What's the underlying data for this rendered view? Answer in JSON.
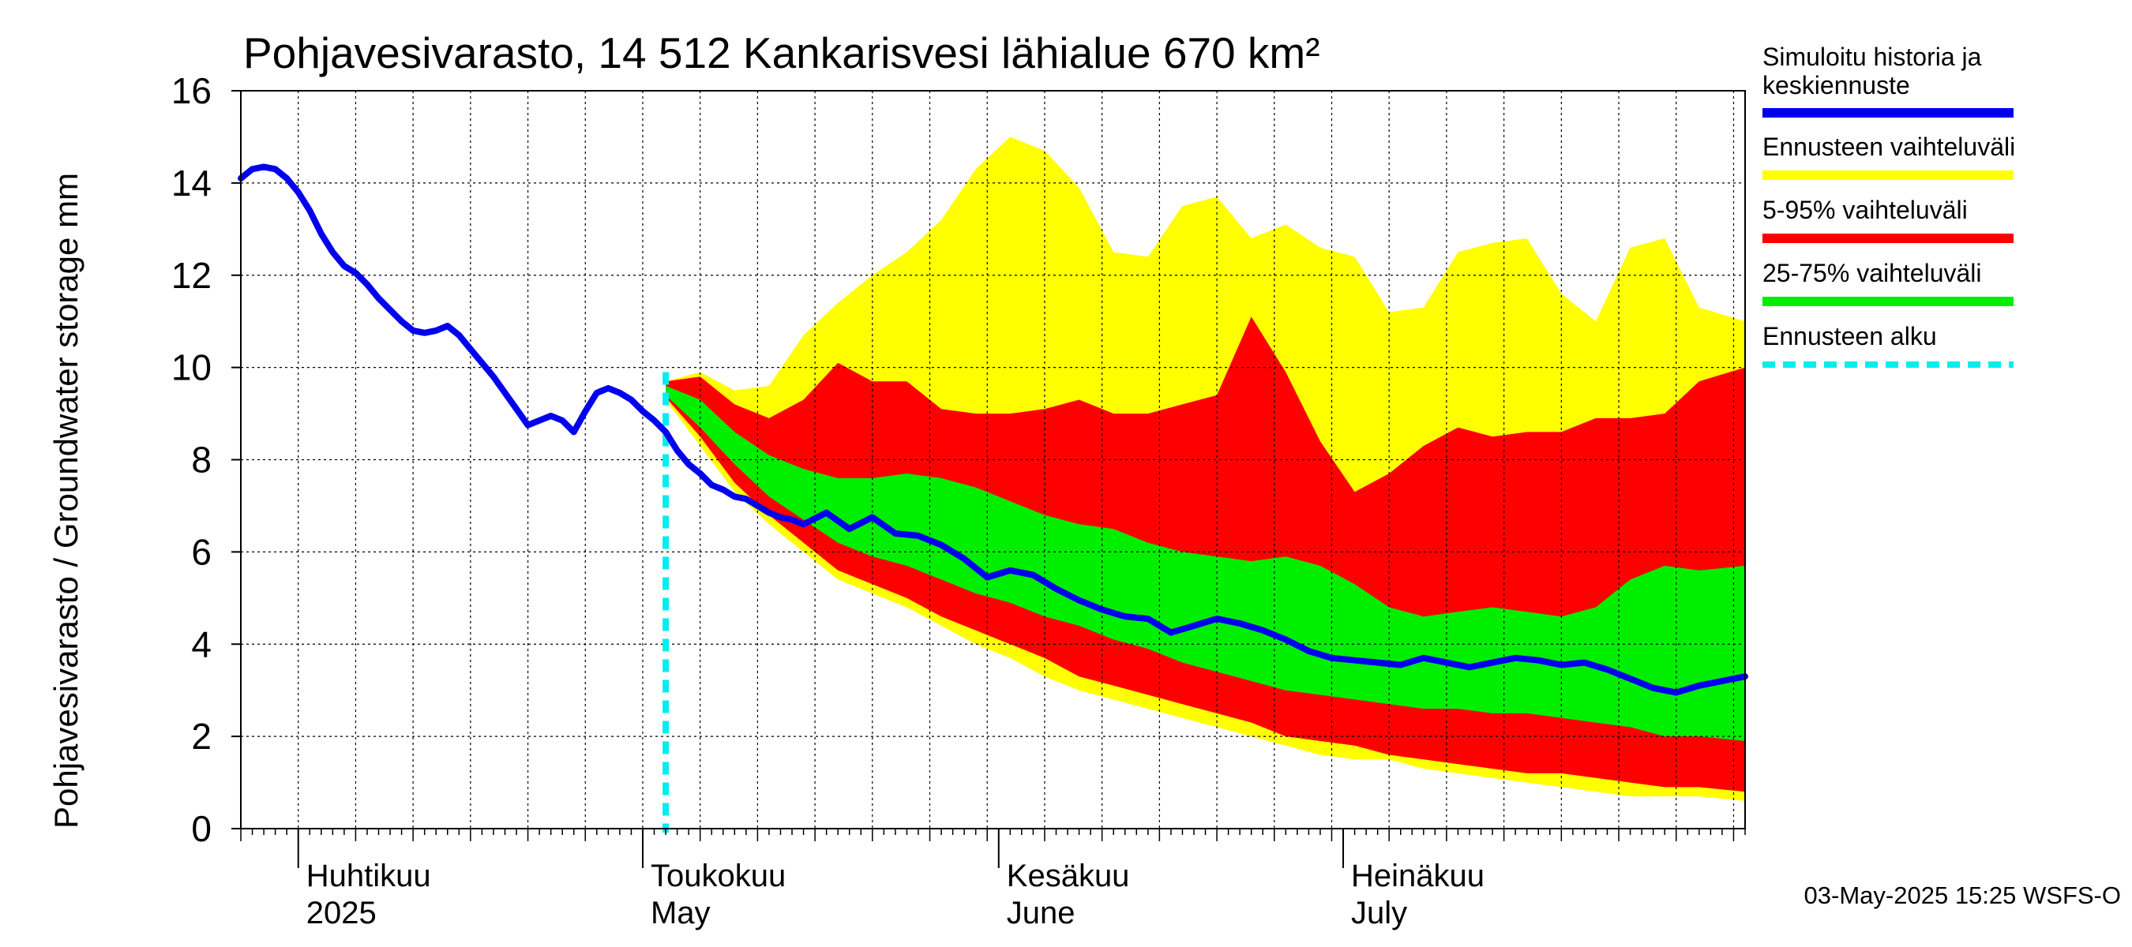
{
  "chart_data": {
    "type": "area",
    "title": "Pohjavesivarasto, 14 512 Kankarisvesi lähialue 670 km²",
    "ylabel": "Pohjavesivarasto / Groundwater storage   mm",
    "ylim": [
      0,
      16
    ],
    "yticks": [
      "0",
      "2",
      "4",
      "6",
      "8",
      "10",
      "12",
      "14",
      "16"
    ],
    "xlim": [
      "2025-03-27",
      "2025-08-05"
    ],
    "x_grid_step_days": 5,
    "grid": true,
    "months": [
      {
        "date": "2025-04-01",
        "label1": "Huhtikuu",
        "label2": "2025"
      },
      {
        "date": "2025-05-01",
        "label1": "Toukokuu",
        "label2": "May"
      },
      {
        "date": "2025-06-01",
        "label1": "Kesäkuu",
        "label2": "June"
      },
      {
        "date": "2025-07-01",
        "label1": "Heinäkuu",
        "label2": "July"
      }
    ],
    "forecast_start": "2025-05-03",
    "legend_position": "right",
    "legend": [
      {
        "key": "history",
        "label": "Simuloitu historia ja keskiennuste",
        "color": "#0000ee"
      },
      {
        "key": "full",
        "label": "Ennusteen vaihteluväli",
        "color": "#ffff00"
      },
      {
        "key": "p5_95",
        "label": "5-95% vaihteluväli",
        "color": "#ff0000"
      },
      {
        "key": "p25_75",
        "label": "25-75% vaihteluväli",
        "color": "#00ee00"
      },
      {
        "key": "start",
        "label": "Ennusteen alku",
        "color": "#00eeee"
      }
    ],
    "series": [
      {
        "name": "Simuloitu historia ja keskiennuste",
        "x": [
          "2025-03-27",
          "2025-03-28",
          "2025-03-29",
          "2025-03-30",
          "2025-03-31",
          "2025-04-01",
          "2025-04-02",
          "2025-04-03",
          "2025-04-04",
          "2025-04-05",
          "2025-04-06",
          "2025-04-07",
          "2025-04-08",
          "2025-04-09",
          "2025-04-10",
          "2025-04-11",
          "2025-04-12",
          "2025-04-13",
          "2025-04-14",
          "2025-04-15",
          "2025-04-16",
          "2025-04-17",
          "2025-04-18",
          "2025-04-19",
          "2025-04-20",
          "2025-04-21",
          "2025-04-22",
          "2025-04-23",
          "2025-04-24",
          "2025-04-25",
          "2025-04-26",
          "2025-04-27",
          "2025-04-28",
          "2025-04-29",
          "2025-04-30",
          "2025-05-01",
          "2025-05-02",
          "2025-05-03",
          "2025-05-04",
          "2025-05-05",
          "2025-05-06",
          "2025-05-07",
          "2025-05-08",
          "2025-05-09",
          "2025-05-10",
          "2025-05-11",
          "2025-05-12",
          "2025-05-13",
          "2025-05-14",
          "2025-05-15",
          "2025-05-17",
          "2025-05-19",
          "2025-05-21",
          "2025-05-23",
          "2025-05-25",
          "2025-05-27",
          "2025-05-29",
          "2025-05-31",
          "2025-06-02",
          "2025-06-04",
          "2025-06-06",
          "2025-06-08",
          "2025-06-10",
          "2025-06-12",
          "2025-06-14",
          "2025-06-16",
          "2025-06-18",
          "2025-06-20",
          "2025-06-22",
          "2025-06-24",
          "2025-06-26",
          "2025-06-28",
          "2025-06-30",
          "2025-07-02",
          "2025-07-04",
          "2025-07-06",
          "2025-07-08",
          "2025-07-10",
          "2025-07-12",
          "2025-07-14",
          "2025-07-16",
          "2025-07-18",
          "2025-07-20",
          "2025-07-22",
          "2025-07-24",
          "2025-07-26",
          "2025-07-28",
          "2025-07-30",
          "2025-08-01",
          "2025-08-03",
          "2025-08-05"
        ],
        "values": [
          14.1,
          14.3,
          14.35,
          14.3,
          14.1,
          13.8,
          13.4,
          12.9,
          12.5,
          12.2,
          12.05,
          11.8,
          11.5,
          11.25,
          11.0,
          10.8,
          10.75,
          10.8,
          10.9,
          10.7,
          10.4,
          10.1,
          9.8,
          9.45,
          9.1,
          8.75,
          8.85,
          8.95,
          8.85,
          8.6,
          9.05,
          9.45,
          9.55,
          9.45,
          9.3,
          9.05,
          8.85,
          8.6,
          8.2,
          7.9,
          7.7,
          7.45,
          7.35,
          7.2,
          7.15,
          7.0,
          6.85,
          6.75,
          6.7,
          6.6,
          6.85,
          6.5,
          6.75,
          6.4,
          6.35,
          6.15,
          5.85,
          5.45,
          5.6,
          5.5,
          5.2,
          4.95,
          4.75,
          4.6,
          4.55,
          4.25,
          4.4,
          4.55,
          4.45,
          4.3,
          4.1,
          3.85,
          3.7,
          3.65,
          3.6,
          3.55,
          3.7,
          3.6,
          3.5,
          3.6,
          3.7,
          3.65,
          3.55,
          3.6,
          3.45,
          3.25,
          3.05,
          2.95,
          3.1,
          3.2,
          3.3
        ]
      }
    ],
    "bands": {
      "x": [
        "2025-05-03",
        "2025-05-06",
        "2025-05-09",
        "2025-05-12",
        "2025-05-15",
        "2025-05-18",
        "2025-05-21",
        "2025-05-24",
        "2025-05-27",
        "2025-05-30",
        "2025-06-02",
        "2025-06-05",
        "2025-06-08",
        "2025-06-11",
        "2025-06-14",
        "2025-06-17",
        "2025-06-20",
        "2025-06-23",
        "2025-06-26",
        "2025-06-29",
        "2025-07-02",
        "2025-07-05",
        "2025-07-08",
        "2025-07-11",
        "2025-07-14",
        "2025-07-17",
        "2025-07-20",
        "2025-07-23",
        "2025-07-26",
        "2025-07-29",
        "2025-08-01",
        "2025-08-05"
      ],
      "full": {
        "lower": [
          9.3,
          8.3,
          7.3,
          6.6,
          6.0,
          5.4,
          5.1,
          4.8,
          4.4,
          4.0,
          3.7,
          3.3,
          3.0,
          2.8,
          2.6,
          2.4,
          2.2,
          2.0,
          1.8,
          1.6,
          1.5,
          1.5,
          1.3,
          1.2,
          1.1,
          1.0,
          0.9,
          0.8,
          0.7,
          0.7,
          0.7,
          0.6
        ],
        "upper": [
          9.7,
          9.9,
          9.5,
          9.6,
          10.7,
          11.4,
          12.0,
          12.5,
          13.2,
          14.3,
          15.0,
          14.7,
          13.9,
          12.5,
          12.4,
          13.5,
          13.7,
          12.8,
          13.1,
          12.6,
          12.4,
          11.2,
          11.3,
          12.5,
          12.7,
          12.8,
          11.6,
          11.0,
          12.6,
          12.8,
          11.3,
          11.0
        ]
      },
      "p5_95": {
        "lower": [
          9.35,
          8.5,
          7.5,
          6.8,
          6.2,
          5.6,
          5.3,
          5.0,
          4.6,
          4.3,
          4.0,
          3.7,
          3.3,
          3.1,
          2.9,
          2.7,
          2.5,
          2.3,
          2.0,
          1.9,
          1.8,
          1.6,
          1.5,
          1.4,
          1.3,
          1.2,
          1.2,
          1.1,
          1.0,
          0.9,
          0.9,
          0.8
        ],
        "upper": [
          9.7,
          9.8,
          9.2,
          8.9,
          9.3,
          10.1,
          9.7,
          9.7,
          9.1,
          9.0,
          9.0,
          9.1,
          9.3,
          9.0,
          9.0,
          9.2,
          9.4,
          11.1,
          9.9,
          8.4,
          7.3,
          7.7,
          8.3,
          8.7,
          8.5,
          8.6,
          8.6,
          8.9,
          8.9,
          9.0,
          9.7,
          10.0
        ]
      },
      "p25_75": {
        "lower": [
          9.4,
          8.7,
          7.9,
          7.2,
          6.7,
          6.2,
          5.9,
          5.7,
          5.4,
          5.1,
          4.9,
          4.6,
          4.4,
          4.1,
          3.9,
          3.6,
          3.4,
          3.2,
          3.0,
          2.9,
          2.8,
          2.7,
          2.6,
          2.6,
          2.5,
          2.5,
          2.4,
          2.3,
          2.2,
          2.0,
          2.0,
          1.9
        ],
        "upper": [
          9.6,
          9.3,
          8.6,
          8.1,
          7.8,
          7.6,
          7.6,
          7.7,
          7.6,
          7.4,
          7.1,
          6.8,
          6.6,
          6.5,
          6.2,
          6.0,
          5.9,
          5.8,
          5.9,
          5.7,
          5.3,
          4.8,
          4.6,
          4.7,
          4.8,
          4.7,
          4.6,
          4.8,
          5.4,
          5.7,
          5.6,
          5.7
        ]
      }
    }
  },
  "footer": "03-May-2025 15:25 WSFS-O"
}
